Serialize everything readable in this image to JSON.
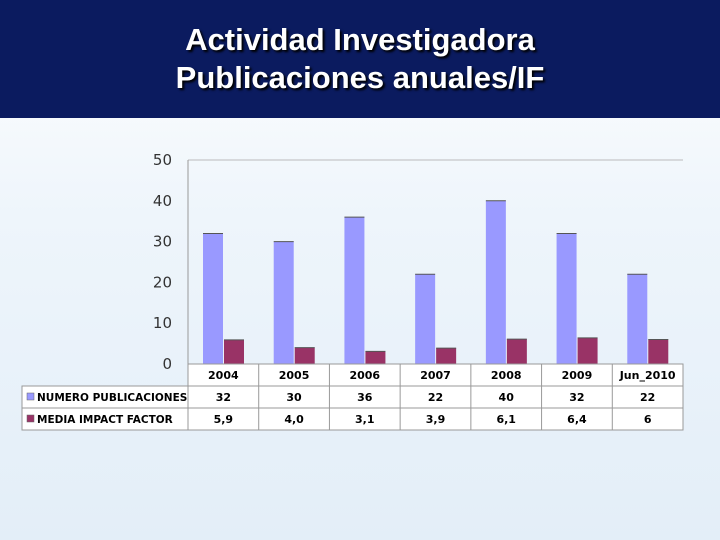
{
  "header": {
    "title_line1": "Actividad Investigadora",
    "title_line2": "Publicaciones anuales/IF"
  },
  "chart_data": {
    "type": "bar",
    "categories": [
      "2004",
      "2005",
      "2006",
      "2007",
      "2008",
      "2009",
      "Jun_2010"
    ],
    "series": [
      {
        "name": "NUMERO PUBLICACIONES",
        "values": [
          32,
          30,
          36,
          22,
          40,
          32,
          22
        ],
        "labels": [
          "32",
          "30",
          "36",
          "22",
          "40",
          "32",
          "22"
        ],
        "color": "#9999ff"
      },
      {
        "name": "MEDIA IMPACT FACTOR",
        "values": [
          5.9,
          4.0,
          3.1,
          3.9,
          6.1,
          6.4,
          6
        ],
        "labels": [
          "5,9",
          "4,0",
          "3,1",
          "3,9",
          "6,1",
          "6,4",
          "6"
        ],
        "color": "#993366"
      }
    ],
    "y_ticks": [
      "0",
      "10",
      "20",
      "30",
      "40",
      "50"
    ],
    "ylim": [
      0,
      50
    ],
    "data_table": true,
    "grid": false,
    "legend": "in data table"
  }
}
